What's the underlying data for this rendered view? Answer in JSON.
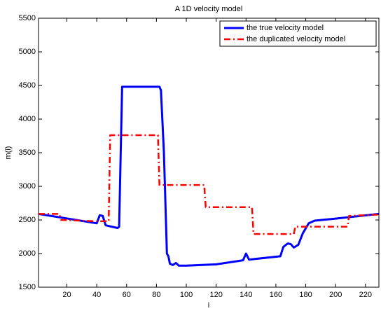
{
  "chart_data": {
    "type": "line",
    "title": "A 1D velocity model",
    "x_label": "i",
    "y_label": "m(i)",
    "xlim": [
      1,
      229
    ],
    "ylim": [
      1500,
      5500
    ],
    "xticks": [
      20,
      40,
      60,
      80,
      100,
      120,
      140,
      160,
      180,
      200,
      220
    ],
    "yticks": [
      1500,
      2000,
      2500,
      3000,
      3500,
      4000,
      4500,
      5000,
      5500
    ],
    "legend": "upper right",
    "series": [
      {
        "name": "the true velocity model",
        "color": "#0000ff",
        "style": "solid",
        "x": [
          1,
          40,
          42,
          44,
          46,
          50,
          54,
          55,
          57,
          82,
          83,
          85,
          87,
          88,
          89,
          91,
          93,
          95,
          100,
          120,
          138,
          140,
          142,
          163,
          165,
          168,
          170,
          172,
          175,
          178,
          182,
          186,
          200,
          229
        ],
        "values": [
          2590,
          2450,
          2570,
          2560,
          2420,
          2400,
          2380,
          2400,
          4480,
          4480,
          4430,
          3500,
          2000,
          1960,
          1850,
          1830,
          1860,
          1820,
          1820,
          1840,
          1900,
          2000,
          1910,
          1960,
          2100,
          2150,
          2140,
          2090,
          2130,
          2300,
          2450,
          2490,
          2520,
          2590
        ]
      },
      {
        "name": "the duplicated velocity model",
        "color": "#ff0000",
        "style": "dashdot",
        "x": [
          1,
          15,
          16,
          40,
          48,
          49,
          81,
          82,
          112,
          113,
          144,
          145,
          172,
          173,
          208,
          209,
          229
        ],
        "values": [
          2590,
          2590,
          2500,
          2480,
          2480,
          3760,
          3760,
          3020,
          3020,
          2690,
          2690,
          2290,
          2290,
          2400,
          2400,
          2560,
          2580
        ]
      }
    ]
  }
}
